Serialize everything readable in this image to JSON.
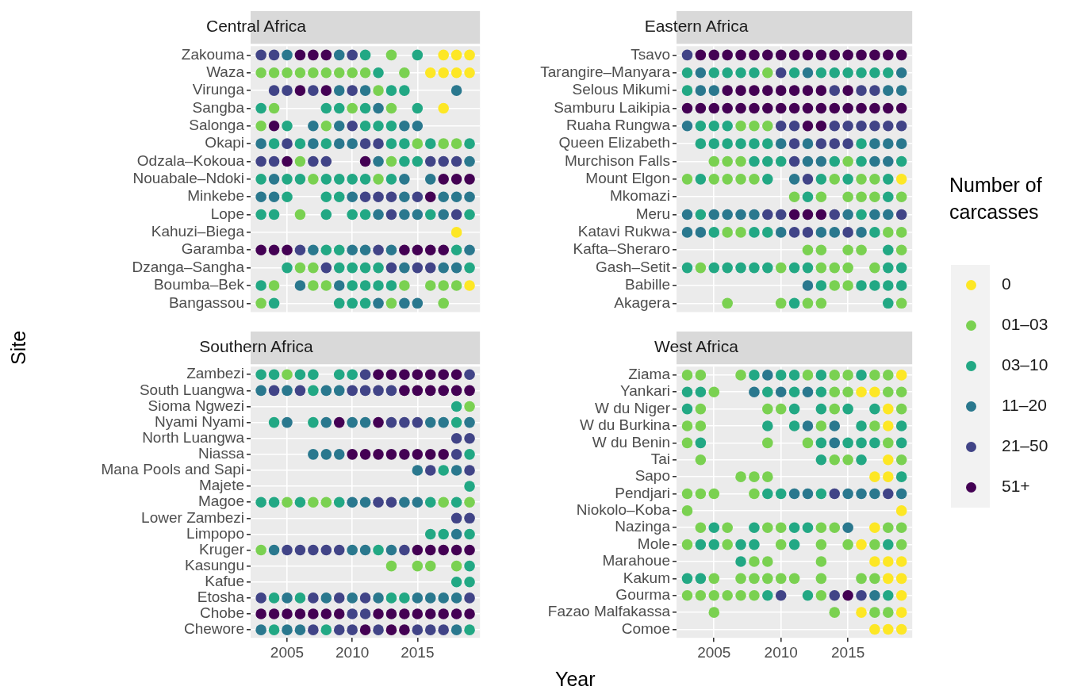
{
  "chart_data": [
    {
      "type": "scatter",
      "orientation": "horizontal",
      "title": "Central Africa",
      "ylabel": "Site",
      "legend": "right",
      "legend_title": "Number of carcasses",
      "marker": "circle",
      "grid": true,
      "tick_labels": "y",
      "xlim": [
        2002.2,
        2019.8
      ],
      "xticks": [
        2005,
        2010,
        2015
      ],
      "categories": [
        "Zakouma",
        "Waza",
        "Virunga",
        "Sangba",
        "Salonga",
        "Okapi",
        "Odzala–Kokoua",
        "Nouabale–Ndoki",
        "Minkebe",
        "Lope",
        "Kahuzi–Biega",
        "Garamba",
        "Dzanga–Sangha",
        "Boumba–Bek",
        "Bangassou"
      ],
      "series": [
        {
          "name": "0",
          "color": "#fde725",
          "values": [
            2017,
            2018,
            2019,
            2016,
            2017,
            2018,
            2019,
            2017,
            2018,
            2019
          ],
          "x": [
            "Zakouma",
            "Zakouma",
            "Zakouma",
            "Waza",
            "Waza",
            "Waza",
            "Waza",
            "Sangba",
            "Kahuzi–Biega",
            "Boumba–Bek"
          ]
        },
        {
          "name": "01–03",
          "color": "#7ad151",
          "values": [
            2013,
            2003,
            2004,
            2005,
            2006,
            2007,
            2008,
            2009,
            2010,
            2011,
            2014,
            2012,
            2004,
            2010,
            2013,
            2003,
            2008,
            2015,
            2017,
            2018,
            2006,
            2013,
            2007,
            2012,
            2006,
            2006,
            2007,
            2004,
            2007,
            2008,
            2014,
            2016,
            2017,
            2018,
            2003,
            2013,
            2017
          ],
          "x": [
            "Zakouma",
            "Waza",
            "Waza",
            "Waza",
            "Waza",
            "Waza",
            "Waza",
            "Waza",
            "Waza",
            "Waza",
            "Waza",
            "Virunga",
            "Sangba",
            "Sangba",
            "Sangba",
            "Salonga",
            "Salonga",
            "Okapi",
            "Okapi",
            "Okapi",
            "Odzala–Kokoua",
            "Odzala–Kokoua",
            "Nouabale–Ndoki",
            "Nouabale–Ndoki",
            "Lope",
            "Dzanga–Sangha",
            "Dzanga–Sangha",
            "Boumba–Bek",
            "Boumba–Bek",
            "Boumba–Bek",
            "Boumba–Bek",
            "Boumba–Bek",
            "Boumba–Bek",
            "Boumba–Bek",
            "Bangassou",
            "Bangassou",
            "Bangassou"
          ]
        },
        {
          "name": "03–10",
          "color": "#22a884",
          "values": [
            2011,
            2015,
            2012,
            2013,
            2014,
            2003,
            2008,
            2009,
            2011,
            2015,
            2005,
            2011,
            2012,
            2013,
            2004,
            2006,
            2008,
            2013,
            2014,
            2016,
            2019,
            2014,
            2015,
            2003,
            2005,
            2006,
            2008,
            2009,
            2010,
            2011,
            2013,
            2005,
            2008,
            2009,
            2003,
            2004,
            2008,
            2010,
            2011,
            2016,
            2019,
            2008,
            2009,
            2018,
            2005,
            2009,
            2010,
            2011,
            2012,
            2019,
            2003,
            2010,
            2011,
            2012,
            2013,
            2004,
            2009,
            2010,
            2011
          ],
          "x": [
            "Zakouma",
            "Zakouma",
            "Waza",
            "Virunga",
            "Virunga",
            "Sangba",
            "Sangba",
            "Sangba",
            "Sangba",
            "Sangba",
            "Salonga",
            "Salonga",
            "Salonga",
            "Salonga",
            "Okapi",
            "Okapi",
            "Okapi",
            "Okapi",
            "Okapi",
            "Okapi",
            "Okapi",
            "Odzala–Kokoua",
            "Odzala–Kokoua",
            "Nouabale–Ndoki",
            "Nouabale–Ndoki",
            "Nouabale–Ndoki",
            "Nouabale–Ndoki",
            "Nouabale–Ndoki",
            "Nouabale–Ndoki",
            "Nouabale–Ndoki",
            "Nouabale–Ndoki",
            "Minkebe",
            "Minkebe",
            "Minkebe",
            "Lope",
            "Lope",
            "Lope",
            "Lope",
            "Lope",
            "Lope",
            "Lope",
            "Garamba",
            "Garamba",
            "Garamba",
            "Dzanga–Sangha",
            "Dzanga–Sangha",
            "Dzanga–Sangha",
            "Dzanga–Sangha",
            "Dzanga–Sangha",
            "Dzanga–Sangha",
            "Boumba–Bek",
            "Boumba–Bek",
            "Boumba–Bek",
            "Boumba–Bek",
            "Boumba–Bek",
            "Bangassou",
            "Bangassou",
            "Bangassou",
            "Bangassou"
          ]
        },
        {
          "name": "11–20",
          "color": "#2a788e",
          "values": [
            2005,
            2009,
            2009,
            2011,
            2018,
            2012,
            2007,
            2009,
            2014,
            2015,
            2003,
            2007,
            2009,
            2010,
            2012,
            2019,
            2004,
            2014,
            2016,
            2003,
            2004,
            2010,
            2014,
            2017,
            2018,
            2019,
            2012,
            2014,
            2015,
            2017,
            2007,
            2010,
            2011,
            2013,
            2019,
            2014,
            2017,
            2018,
            2006,
            2009,
            2012,
            2014,
            2015
          ],
          "x": [
            "Zakouma",
            "Zakouma",
            "Virunga",
            "Virunga",
            "Virunga",
            "Sangba",
            "Salonga",
            "Salonga",
            "Salonga",
            "Salonga",
            "Okapi",
            "Okapi",
            "Okapi",
            "Okapi",
            "Odzala–Kokoua",
            "Odzala–Kokoua",
            "Nouabale–Ndoki",
            "Nouabale–Ndoki",
            "Nouabale–Ndoki",
            "Minkebe",
            "Minkebe",
            "Minkebe",
            "Minkebe",
            "Minkebe",
            "Minkebe",
            "Minkebe",
            "Lope",
            "Lope",
            "Lope",
            "Lope",
            "Garamba",
            "Garamba",
            "Garamba",
            "Garamba",
            "Garamba",
            "Dzanga–Sangha",
            "Dzanga–Sangha",
            "Dzanga–Sangha",
            "Boumba–Bek",
            "Boumba–Bek",
            "Bangassou",
            "Bangassou",
            "Bangassou"
          ]
        },
        {
          "name": "21–50",
          "color": "#414487",
          "values": [
            2003,
            2004,
            2010,
            2004,
            2005,
            2007,
            2010,
            2010,
            2005,
            2011,
            2012,
            2003,
            2004,
            2007,
            2008,
            2016,
            2017,
            2018,
            2011,
            2012,
            2013,
            2015,
            2013,
            2018,
            2006,
            2012,
            2008,
            2013,
            2015,
            2016
          ],
          "x": [
            "Zakouma",
            "Zakouma",
            "Zakouma",
            "Virunga",
            "Virunga",
            "Virunga",
            "Virunga",
            "Salonga",
            "Okapi",
            "Okapi",
            "Okapi",
            "Odzala–Kokoua",
            "Odzala–Kokoua",
            "Odzala–Kokoua",
            "Odzala–Kokoua",
            "Odzala–Kokoua",
            "Odzala–Kokoua",
            "Odzala–Kokoua",
            "Minkebe",
            "Minkebe",
            "Minkebe",
            "Minkebe",
            "Lope",
            "Lope",
            "Garamba",
            "Garamba",
            "Dzanga–Sangha",
            "Dzanga–Sangha",
            "Dzanga–Sangha",
            "Dzanga–Sangha"
          ]
        },
        {
          "name": "51+",
          "color": "#440154",
          "values": [
            2006,
            2007,
            2008,
            2006,
            2008,
            2004,
            2005,
            2011,
            2017,
            2018,
            2019,
            2016,
            2003,
            2004,
            2005,
            2014,
            2015,
            2016,
            2017
          ],
          "x": [
            "Zakouma",
            "Zakouma",
            "Zakouma",
            "Virunga",
            "Virunga",
            "Salonga",
            "Odzala–Kokoua",
            "Odzala–Kokoua",
            "Nouabale–Ndoki",
            "Nouabale–Ndoki",
            "Nouabale–Ndoki",
            "Minkebe",
            "Garamba",
            "Garamba",
            "Garamba",
            "Garamba",
            "Garamba",
            "Garamba",
            "Garamba"
          ]
        }
      ]
    },
    {
      "type": "scatter",
      "orientation": "horizontal",
      "title": "Eastern Africa",
      "marker": "circle",
      "grid": true,
      "tick_labels": "y",
      "xlim": [
        2002.2,
        2019.8
      ],
      "xticks": [
        2005,
        2010,
        2015
      ],
      "categories": [
        "Tsavo",
        "Tarangire–Manyara",
        "Selous Mikumi",
        "Samburu Laikipia",
        "Ruaha Rungwa",
        "Queen Elizabeth",
        "Murchison Falls",
        "Mount Elgon",
        "Mkomazi",
        "Meru",
        "Katavi Rukwa",
        "Kafta–Sheraro",
        "Gash–Setit",
        "Babille",
        "Akagera"
      ],
      "series": [
        {
          "color": "#fde725",
          "values": [
            2019
          ],
          "x": [
            "Mount Elgon"
          ]
        },
        {
          "color": "#7ad151",
          "values": [
            2009,
            2007,
            2008,
            2009,
            2005,
            2006,
            2007,
            2015,
            2003,
            2005,
            2006,
            2007,
            2008,
            2014,
            2016,
            2017,
            2011,
            2013,
            2015,
            2016,
            2017,
            2019,
            2006,
            2007,
            2018,
            2019,
            2012,
            2013,
            2015,
            2016,
            2019,
            2004,
            2010,
            2013,
            2014,
            2015,
            2017,
            2014,
            2015,
            2006,
            2010,
            2012,
            2013,
            2019
          ],
          "x": [
            "Tarangire–Manyara",
            "Ruaha Rungwa",
            "Ruaha Rungwa",
            "Ruaha Rungwa",
            "Murchison Falls",
            "Murchison Falls",
            "Murchison Falls",
            "Murchison Falls",
            "Mount Elgon",
            "Mount Elgon",
            "Mount Elgon",
            "Mount Elgon",
            "Mount Elgon",
            "Mount Elgon",
            "Mount Elgon",
            "Mount Elgon",
            "Mkomazi",
            "Mkomazi",
            "Mkomazi",
            "Mkomazi",
            "Mkomazi",
            "Mkomazi",
            "Katavi Rukwa",
            "Katavi Rukwa",
            "Katavi Rukwa",
            "Katavi Rukwa",
            "Kafta–Sheraro",
            "Kafta–Sheraro",
            "Kafta–Sheraro",
            "Kafta–Sheraro",
            "Kafta–Sheraro",
            "Gash–Setit",
            "Gash–Setit",
            "Gash–Setit",
            "Gash–Setit",
            "Gash–Setit",
            "Gash–Setit",
            "Babille",
            "Babille",
            "Akagera",
            "Akagera",
            "Akagera",
            "Akagera",
            "Akagera"
          ]
        },
        {
          "color": "#22a884",
          "values": [
            2003,
            2005,
            2006,
            2007,
            2008,
            2011,
            2013,
            2014,
            2015,
            2016,
            2017,
            2018,
            2003,
            2004,
            2005,
            2006,
            2004,
            2005,
            2006,
            2007,
            2008,
            2009,
            2016,
            2008,
            2009,
            2010,
            2014,
            2016,
            2019,
            2004,
            2009,
            2013,
            2015,
            2018,
            2012,
            2018,
            2004,
            2016,
            2005,
            2008,
            2009,
            2017,
            2018,
            2003,
            2005,
            2006,
            2007,
            2008,
            2009,
            2011,
            2012,
            2018,
            2019,
            2013,
            2016,
            2017,
            2018,
            2019,
            2011,
            2018
          ],
          "x": [
            "Tarangire–Manyara",
            "Tarangire–Manyara",
            "Tarangire–Manyara",
            "Tarangire–Manyara",
            "Tarangire–Manyara",
            "Tarangire–Manyara",
            "Tarangire–Manyara",
            "Tarangire–Manyara",
            "Tarangire–Manyara",
            "Tarangire–Manyara",
            "Tarangire–Manyara",
            "Tarangire–Manyara",
            "Selous Mikumi",
            "Ruaha Rungwa",
            "Ruaha Rungwa",
            "Ruaha Rungwa",
            "Queen Elizabeth",
            "Queen Elizabeth",
            "Queen Elizabeth",
            "Queen Elizabeth",
            "Queen Elizabeth",
            "Queen Elizabeth",
            "Queen Elizabeth",
            "Murchison Falls",
            "Murchison Falls",
            "Murchison Falls",
            "Murchison Falls",
            "Murchison Falls",
            "Murchison Falls",
            "Mount Elgon",
            "Mount Elgon",
            "Mount Elgon",
            "Mount Elgon",
            "Mount Elgon",
            "Mkomazi",
            "Mkomazi",
            "Meru",
            "Meru",
            "Katavi Rukwa",
            "Katavi Rukwa",
            "Katavi Rukwa",
            "Katavi Rukwa",
            "Kafta–Sheraro",
            "Gash–Setit",
            "Gash–Setit",
            "Gash–Setit",
            "Gash–Setit",
            "Gash–Setit",
            "Gash–Setit",
            "Gash–Setit",
            "Gash–Setit",
            "Gash–Setit",
            "Gash–Setit",
            "Babille",
            "Babille",
            "Babille",
            "Babille",
            "Babille",
            "Akagera",
            "Akagera"
          ]
        },
        {
          "color": "#2a788e",
          "values": [
            2004,
            2012,
            2019,
            2004,
            2005,
            2018,
            2019,
            2003,
            2010,
            2012,
            2017,
            2018,
            2019,
            2012,
            2013,
            2017,
            2018,
            2011,
            2003,
            2005,
            2006,
            2007,
            2008,
            2015,
            2017,
            2018,
            2003,
            2004,
            2010,
            2013,
            2014,
            2016,
            2012
          ],
          "x": [
            "Tarangire–Manyara",
            "Tarangire–Manyara",
            "Tarangire–Manyara",
            "Selous Mikumi",
            "Selous Mikumi",
            "Selous Mikumi",
            "Selous Mikumi",
            "Ruaha Rungwa",
            "Queen Elizabeth",
            "Queen Elizabeth",
            "Queen Elizabeth",
            "Queen Elizabeth",
            "Queen Elizabeth",
            "Murchison Falls",
            "Murchison Falls",
            "Murchison Falls",
            "Murchison Falls",
            "Mount Elgon",
            "Meru",
            "Meru",
            "Meru",
            "Meru",
            "Meru",
            "Meru",
            "Meru",
            "Meru",
            "Katavi Rukwa",
            "Katavi Rukwa",
            "Katavi Rukwa",
            "Katavi Rukwa",
            "Katavi Rukwa",
            "Katavi Rukwa",
            "Babille"
          ]
        },
        {
          "color": "#414487",
          "values": [
            2003,
            2010,
            2014,
            2016,
            2017,
            2010,
            2011,
            2014,
            2015,
            2016,
            2017,
            2018,
            2019,
            2011,
            2013,
            2014,
            2015,
            2011,
            2012,
            2009,
            2010,
            2014,
            2019,
            2011,
            2012,
            2015
          ],
          "x": [
            "Tsavo",
            "Tarangire–Manyara",
            "Selous Mikumi",
            "Selous Mikumi",
            "Selous Mikumi",
            "Ruaha Rungwa",
            "Ruaha Rungwa",
            "Ruaha Rungwa",
            "Ruaha Rungwa",
            "Ruaha Rungwa",
            "Ruaha Rungwa",
            "Ruaha Rungwa",
            "Ruaha Rungwa",
            "Queen Elizabeth",
            "Queen Elizabeth",
            "Queen Elizabeth",
            "Queen Elizabeth",
            "Murchison Falls",
            "Mount Elgon",
            "Meru",
            "Meru",
            "Meru",
            "Meru",
            "Katavi Rukwa",
            "Katavi Rukwa",
            "Katavi Rukwa"
          ]
        },
        {
          "color": "#440154",
          "values": [
            2004,
            2005,
            2006,
            2007,
            2008,
            2009,
            2010,
            2011,
            2012,
            2013,
            2014,
            2015,
            2016,
            2017,
            2018,
            2019,
            2006,
            2007,
            2008,
            2009,
            2010,
            2011,
            2012,
            2013,
            2015,
            2003,
            2004,
            2005,
            2006,
            2007,
            2008,
            2009,
            2010,
            2011,
            2012,
            2013,
            2014,
            2015,
            2016,
            2017,
            2018,
            2019,
            2012,
            2013,
            2011,
            2012,
            2013
          ],
          "x": [
            "Tsavo",
            "Tsavo",
            "Tsavo",
            "Tsavo",
            "Tsavo",
            "Tsavo",
            "Tsavo",
            "Tsavo",
            "Tsavo",
            "Tsavo",
            "Tsavo",
            "Tsavo",
            "Tsavo",
            "Tsavo",
            "Tsavo",
            "Tsavo",
            "Selous Mikumi",
            "Selous Mikumi",
            "Selous Mikumi",
            "Selous Mikumi",
            "Selous Mikumi",
            "Selous Mikumi",
            "Selous Mikumi",
            "Selous Mikumi",
            "Selous Mikumi",
            "Samburu Laikipia",
            "Samburu Laikipia",
            "Samburu Laikipia",
            "Samburu Laikipia",
            "Samburu Laikipia",
            "Samburu Laikipia",
            "Samburu Laikipia",
            "Samburu Laikipia",
            "Samburu Laikipia",
            "Samburu Laikipia",
            "Samburu Laikipia",
            "Samburu Laikipia",
            "Samburu Laikipia",
            "Samburu Laikipia",
            "Samburu Laikipia",
            "Samburu Laikipia",
            "Samburu Laikipia",
            "Ruaha Rungwa",
            "Ruaha Rungwa",
            "Meru",
            "Meru",
            "Meru"
          ]
        }
      ]
    },
    {
      "type": "scatter",
      "orientation": "horizontal",
      "title": "Southern Africa",
      "xlabel": "Year",
      "marker": "circle",
      "grid": true,
      "xlim": [
        2002.2,
        2019.8
      ],
      "xticks": [
        2005,
        2010,
        2015
      ],
      "categories": [
        "Zambezi",
        "South Luangwa",
        "Sioma Ngwezi",
        "Nyami Nyami",
        "North Luangwa",
        "Niassa",
        "Mana Pools and Sapi",
        "Majete",
        "Magoe",
        "Lower Zambezi",
        "Limpopo",
        "Kruger",
        "Kasungu",
        "Kafue",
        "Etosha",
        "Chobe",
        "Chewore"
      ],
      "series": [
        {
          "color": "#7ad151",
          "values": [
            2005,
            2019,
            2005,
            2007,
            2008,
            2017,
            2019,
            2003,
            2013,
            2015,
            2016,
            2018
          ],
          "x": [
            "Zambezi",
            "Sioma Ngwezi",
            "Magoe",
            "Magoe",
            "Magoe",
            "Magoe",
            "Magoe",
            "Kruger",
            "Kasungu",
            "Kasungu",
            "Kasungu",
            "Kasungu"
          ]
        },
        {
          "color": "#22a884",
          "values": [
            2003,
            2004,
            2006,
            2007,
            2009,
            2010,
            2007,
            2018,
            2004,
            2007,
            2018,
            2019,
            2017,
            2019,
            2003,
            2004,
            2006,
            2009,
            2016,
            2018,
            2016,
            2017,
            2019,
            2012,
            2019,
            2018,
            2019,
            2004,
            2006,
            2013,
            2014,
            2004,
            2008,
            2019
          ],
          "x": [
            "Zambezi",
            "Zambezi",
            "Zambezi",
            "Zambezi",
            "Zambezi",
            "Zambezi",
            "South Luangwa",
            "Sioma Ngwezi",
            "Nyami Nyami",
            "Nyami Nyami",
            "Nyami Nyami",
            "Niassa",
            "Mana Pools and Sapi",
            "Majete",
            "Magoe",
            "Magoe",
            "Magoe",
            "Magoe",
            "Magoe",
            "Magoe",
            "Limpopo",
            "Limpopo",
            "Limpopo",
            "Kruger",
            "Kasungu",
            "Kafue",
            "Kafue",
            "Etosha",
            "Etosha",
            "Etosha",
            "Etosha",
            "Chewore",
            "Chewore",
            "Chewore"
          ]
        },
        {
          "color": "#2a788e",
          "values": [
            2003,
            2005,
            2008,
            2009,
            2005,
            2008,
            2010,
            2011,
            2016,
            2017,
            2019,
            2007,
            2008,
            2009,
            2015,
            2018,
            2010,
            2011,
            2014,
            2015,
            2018,
            2004,
            2010,
            2011,
            2013,
            2005,
            2008,
            2010,
            2012,
            2015,
            2016,
            2017,
            2018,
            2003,
            2005,
            2006,
            2018
          ],
          "x": [
            "South Luangwa",
            "South Luangwa",
            "South Luangwa",
            "South Luangwa",
            "Nyami Nyami",
            "Nyami Nyami",
            "Nyami Nyami",
            "Nyami Nyami",
            "Nyami Nyami",
            "Nyami Nyami",
            "Nyami Nyami",
            "Niassa",
            "Niassa",
            "Niassa",
            "Mana Pools and Sapi",
            "Mana Pools and Sapi",
            "Magoe",
            "Magoe",
            "Magoe",
            "Magoe",
            "Limpopo",
            "Kruger",
            "Kruger",
            "Kruger",
            "Kruger",
            "Etosha",
            "Etosha",
            "Etosha",
            "Etosha",
            "Etosha",
            "Etosha",
            "Etosha",
            "Etosha",
            "Chewore",
            "Chewore",
            "Chewore",
            "Chewore"
          ]
        },
        {
          "color": "#414487",
          "values": [
            2011,
            2019,
            2004,
            2006,
            2010,
            2011,
            2012,
            2013,
            2013,
            2014,
            2015,
            2018,
            2019,
            2018,
            2016,
            2019,
            2012,
            2013,
            2018,
            2019,
            2005,
            2006,
            2007,
            2008,
            2009,
            2014,
            2003,
            2007,
            2009,
            2011,
            2019,
            2010,
            2011,
            2007,
            2009,
            2010,
            2012,
            2015,
            2016,
            2017
          ],
          "x": [
            "Zambezi",
            "Zambezi",
            "South Luangwa",
            "South Luangwa",
            "South Luangwa",
            "South Luangwa",
            "South Luangwa",
            "South Luangwa",
            "Nyami Nyami",
            "Nyami Nyami",
            "Nyami Nyami",
            "North Luangwa",
            "North Luangwa",
            "Niassa",
            "Mana Pools and Sapi",
            "Mana Pools and Sapi",
            "Magoe",
            "Magoe",
            "Lower Zambezi",
            "Lower Zambezi",
            "Kruger",
            "Kruger",
            "Kruger",
            "Kruger",
            "Kruger",
            "Kruger",
            "Etosha",
            "Etosha",
            "Etosha",
            "Etosha",
            "Etosha",
            "Chobe",
            "Chobe",
            "Chewore",
            "Chewore",
            "Chewore",
            "Chewore",
            "Chewore",
            "Chewore",
            "Chewore"
          ]
        },
        {
          "color": "#440154",
          "values": [
            2012,
            2013,
            2014,
            2015,
            2016,
            2017,
            2018,
            2014,
            2015,
            2016,
            2017,
            2018,
            2019,
            2009,
            2012,
            2010,
            2011,
            2012,
            2013,
            2014,
            2015,
            2016,
            2017,
            2015,
            2016,
            2017,
            2018,
            2019,
            2003,
            2004,
            2005,
            2006,
            2007,
            2008,
            2009,
            2012,
            2013,
            2014,
            2015,
            2016,
            2017,
            2018,
            2019,
            2011,
            2013,
            2014
          ],
          "x": [
            "Zambezi",
            "Zambezi",
            "Zambezi",
            "Zambezi",
            "Zambezi",
            "Zambezi",
            "Zambezi",
            "South Luangwa",
            "South Luangwa",
            "South Luangwa",
            "South Luangwa",
            "South Luangwa",
            "South Luangwa",
            "Nyami Nyami",
            "Nyami Nyami",
            "Niassa",
            "Niassa",
            "Niassa",
            "Niassa",
            "Niassa",
            "Niassa",
            "Niassa",
            "Niassa",
            "Kruger",
            "Kruger",
            "Kruger",
            "Kruger",
            "Kruger",
            "Chobe",
            "Chobe",
            "Chobe",
            "Chobe",
            "Chobe",
            "Chobe",
            "Chobe",
            "Chobe",
            "Chobe",
            "Chobe",
            "Chobe",
            "Chobe",
            "Chobe",
            "Chobe",
            "Chobe",
            "Chewore",
            "Chewore",
            "Chewore"
          ]
        }
      ]
    },
    {
      "type": "scatter",
      "orientation": "horizontal",
      "title": "West Africa",
      "marker": "circle",
      "grid": true,
      "xlim": [
        2002.2,
        2019.8
      ],
      "xticks": [
        2005,
        2010,
        2015
      ],
      "categories": [
        "Ziama",
        "Yankari",
        "W du Niger",
        "W du Burkina",
        "W du Benin",
        "Tai",
        "Sapo",
        "Pendjari",
        "Niokolo–Koba",
        "Nazinga",
        "Mole",
        "Marahoue",
        "Kakum",
        "Gourma",
        "Fazao Malfakassa",
        "Comoe"
      ],
      "series": [
        {
          "color": "#fde725",
          "values": [
            2019,
            2016,
            2017,
            2018,
            2018,
            2018,
            2017,
            2018,
            2019,
            2017,
            2016,
            2017,
            2018,
            2019,
            2018,
            2019,
            2019,
            2016,
            2019,
            2017,
            2018,
            2019
          ],
          "x": [
            "Ziama",
            "Yankari",
            "Yankari",
            "W du Niger",
            "W du Burkina",
            "Tai",
            "Sapo",
            "Sapo",
            "Niokolo–Koba",
            "Nazinga",
            "Mole",
            "Marahoue",
            "Marahoue",
            "Marahoue",
            "Kakum",
            "Kakum",
            "Gourma",
            "Fazao Malfakassa",
            "Fazao Malfakassa",
            "Comoe",
            "Comoe",
            "Comoe"
          ]
        },
        {
          "color": "#7ad151",
          "values": [
            2003,
            2004,
            2007,
            2012,
            2014,
            2015,
            2017,
            2018,
            2005,
            2014,
            2015,
            2018,
            2019,
            2004,
            2009,
            2010,
            2014,
            2019,
            2003,
            2004,
            2013,
            2017,
            2003,
            2009,
            2012,
            2018,
            2004,
            2014,
            2015,
            2019,
            2007,
            2008,
            2009,
            2003,
            2004,
            2005,
            2008,
            2003,
            2004,
            2006,
            2009,
            2010,
            2013,
            2014,
            2018,
            2019,
            2003,
            2006,
            2010,
            2013,
            2015,
            2017,
            2019,
            2008,
            2009,
            2013,
            2005,
            2007,
            2008,
            2009,
            2010,
            2011,
            2013,
            2016,
            2017,
            2003,
            2004,
            2005,
            2006,
            2007,
            2008,
            2013,
            2005,
            2014,
            2017,
            2018
          ],
          "x": [
            "Ziama",
            "Ziama",
            "Ziama",
            "Ziama",
            "Ziama",
            "Ziama",
            "Ziama",
            "Ziama",
            "Yankari",
            "Yankari",
            "Yankari",
            "Yankari",
            "Yankari",
            "W du Niger",
            "W du Niger",
            "W du Niger",
            "W du Niger",
            "W du Niger",
            "W du Burkina",
            "W du Burkina",
            "W du Burkina",
            "W du Burkina",
            "W du Benin",
            "W du Benin",
            "W du Benin",
            "W du Benin",
            "Tai",
            "Tai",
            "Tai",
            "Tai",
            "Sapo",
            "Sapo",
            "Sapo",
            "Pendjari",
            "Pendjari",
            "Pendjari",
            "Pendjari",
            "Niokolo–Koba",
            "Nazinga",
            "Nazinga",
            "Nazinga",
            "Nazinga",
            "Nazinga",
            "Nazinga",
            "Nazinga",
            "Nazinga",
            "Mole",
            "Mole",
            "Mole",
            "Mole",
            "Mole",
            "Mole",
            "Mole",
            "Marahoue",
            "Marahoue",
            "Marahoue",
            "Kakum",
            "Kakum",
            "Kakum",
            "Kakum",
            "Kakum",
            "Kakum",
            "Kakum",
            "Kakum",
            "Kakum",
            "Gourma",
            "Gourma",
            "Gourma",
            "Gourma",
            "Gourma",
            "Gourma",
            "Gourma",
            "Fazao Malfakassa",
            "Fazao Malfakassa",
            "Fazao Malfakassa",
            "Fazao Malfakassa"
          ]
        },
        {
          "color": "#22a884",
          "values": [
            2008,
            2010,
            2011,
            2013,
            2016,
            2003,
            2004,
            2009,
            2011,
            2013,
            2003,
            2011,
            2013,
            2015,
            2017,
            2009,
            2011,
            2016,
            2019,
            2004,
            2013,
            2015,
            2016,
            2017,
            2019,
            2013,
            2016,
            2019,
            2009,
            2010,
            2013,
            2005,
            2008,
            2011,
            2012,
            2004,
            2005,
            2007,
            2008,
            2011,
            2018,
            2007,
            2003,
            2004,
            2009,
            2012,
            2018
          ],
          "x": [
            "Ziama",
            "Ziama",
            "Ziama",
            "Ziama",
            "Ziama",
            "Yankari",
            "Yankari",
            "Yankari",
            "Yankari",
            "Yankari",
            "W du Niger",
            "W du Niger",
            "W du Niger",
            "W du Niger",
            "W du Niger",
            "W du Burkina",
            "W du Burkina",
            "W du Burkina",
            "W du Burkina",
            "W du Benin",
            "W du Benin",
            "W du Benin",
            "W du Benin",
            "W du Benin",
            "W du Benin",
            "Tai",
            "Tai",
            "Sapo",
            "Pendjari",
            "Pendjari",
            "Pendjari",
            "Nazinga",
            "Nazinga",
            "Nazinga",
            "Nazinga",
            "Mole",
            "Mole",
            "Mole",
            "Mole",
            "Mole",
            "Mole",
            "Marahoue",
            "Kakum",
            "Kakum",
            "Gourma",
            "Gourma",
            "Gourma"
          ]
        },
        {
          "color": "#2a788e",
          "values": [
            2009,
            2008,
            2010,
            2012,
            2012,
            2014,
            2014,
            2011,
            2012,
            2015,
            2016,
            2017,
            2019,
            2015,
            2017
          ],
          "x": [
            "Ziama",
            "Yankari",
            "Yankari",
            "Yankari",
            "W du Burkina",
            "W du Burkina",
            "W du Benin",
            "Pendjari",
            "Pendjari",
            "Pendjari",
            "Pendjari",
            "Pendjari",
            "Pendjari",
            "Nazinga",
            "Gourma"
          ]
        },
        {
          "color": "#414487",
          "values": [
            2014,
            2018,
            2010,
            2014,
            2016
          ],
          "x": [
            "Pendjari",
            "Pendjari",
            "Gourma",
            "Gourma",
            "Gourma"
          ]
        },
        {
          "color": "#440154",
          "values": [
            2015
          ],
          "x": [
            "Gourma"
          ]
        }
      ]
    }
  ]
}
